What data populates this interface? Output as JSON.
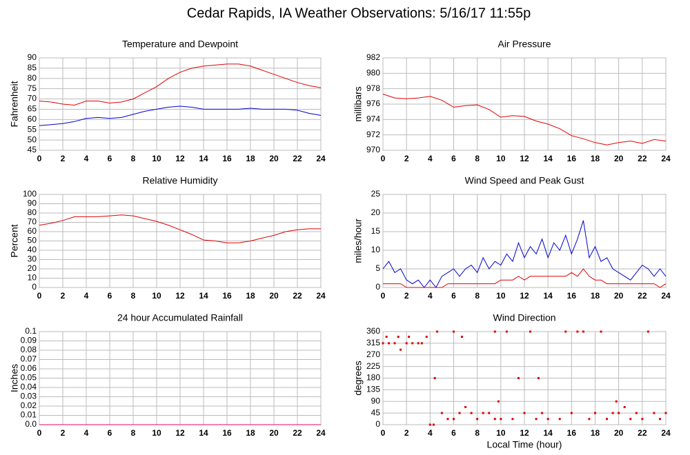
{
  "title": "Cedar Rapids, IA Weather Observations: 5/16/17 11:55p",
  "chart_data": [
    {
      "type": "line",
      "title": "Temperature and Dewpoint",
      "ylabel": "Fahrenheit",
      "xlim": [
        0,
        24
      ],
      "xticks": [
        0,
        2,
        4,
        6,
        8,
        10,
        12,
        14,
        16,
        18,
        20,
        22,
        24
      ],
      "ylim": [
        45,
        90
      ],
      "yticks": [
        45,
        50,
        55,
        60,
        65,
        70,
        75,
        80,
        85,
        90
      ],
      "grid": true,
      "x": [
        0,
        1,
        2,
        3,
        4,
        5,
        6,
        7,
        8,
        9,
        10,
        11,
        12,
        13,
        14,
        15,
        16,
        17,
        18,
        19,
        20,
        21,
        22,
        23,
        24
      ],
      "series": [
        {
          "color": "#e00000",
          "values": [
            69,
            68.5,
            67.5,
            67,
            69,
            69,
            68,
            68.5,
            70,
            73,
            76,
            80,
            83,
            85,
            86,
            86.5,
            87,
            87,
            86,
            84,
            82,
            80,
            78,
            76.5,
            75.5
          ]
        },
        {
          "color": "#0000d0",
          "values": [
            57,
            57.5,
            58,
            59,
            60.5,
            61,
            60.5,
            61,
            62.5,
            64,
            65,
            66,
            66.5,
            66,
            65,
            65,
            65,
            65,
            65.5,
            65,
            65,
            65,
            64.5,
            63,
            62
          ]
        }
      ]
    },
    {
      "type": "line",
      "title": "Air Pressure",
      "ylabel": "millibars",
      "xlim": [
        0,
        24
      ],
      "xticks": [
        0,
        2,
        4,
        6,
        8,
        10,
        12,
        14,
        16,
        18,
        20,
        22,
        24
      ],
      "ylim": [
        970,
        982
      ],
      "yticks": [
        970,
        972,
        974,
        976,
        978,
        980,
        982
      ],
      "grid": true,
      "x": [
        0,
        1,
        2,
        3,
        4,
        5,
        6,
        7,
        8,
        9,
        10,
        11,
        12,
        13,
        14,
        15,
        16,
        17,
        18,
        19,
        20,
        21,
        22,
        23,
        24
      ],
      "series": [
        {
          "color": "#e00000",
          "values": [
            977.3,
            976.8,
            976.7,
            976.8,
            977,
            976.5,
            975.6,
            975.8,
            975.9,
            975.3,
            974.3,
            974.5,
            974.4,
            973.8,
            973.4,
            972.8,
            971.9,
            971.5,
            971,
            970.7,
            971,
            971.2,
            970.9,
            971.4,
            971.2
          ]
        }
      ]
    },
    {
      "type": "line",
      "title": "Relative Humidity",
      "ylabel": "Percent",
      "xlim": [
        0,
        24
      ],
      "xticks": [
        0,
        2,
        4,
        6,
        8,
        10,
        12,
        14,
        16,
        18,
        20,
        22,
        24
      ],
      "ylim": [
        0,
        100
      ],
      "yticks": [
        0,
        10,
        20,
        30,
        40,
        50,
        60,
        70,
        80,
        90,
        100
      ],
      "grid": true,
      "x": [
        0,
        1,
        2,
        3,
        4,
        5,
        6,
        7,
        8,
        9,
        10,
        11,
        12,
        13,
        14,
        15,
        16,
        17,
        18,
        19,
        20,
        21,
        22,
        23,
        24
      ],
      "series": [
        {
          "color": "#e00000",
          "values": [
            67,
            69,
            72,
            76,
            76,
            76,
            77,
            78,
            77,
            74,
            71,
            67,
            62,
            57,
            51,
            50,
            48,
            48,
            50,
            53,
            56,
            60,
            62,
            63,
            63
          ]
        }
      ]
    },
    {
      "type": "line",
      "title": "Wind Speed and Peak Gust",
      "ylabel": "miles/hour",
      "xlim": [
        0,
        24
      ],
      "xticks": [
        0,
        2,
        4,
        6,
        8,
        10,
        12,
        14,
        16,
        18,
        20,
        22,
        24
      ],
      "ylim": [
        0,
        25
      ],
      "yticks": [
        0,
        5,
        10,
        15,
        20,
        25
      ],
      "grid": true,
      "x": [
        0,
        0.5,
        1,
        1.5,
        2,
        2.5,
        3,
        3.5,
        4,
        4.5,
        5,
        5.5,
        6,
        6.5,
        7,
        7.5,
        8,
        8.5,
        9,
        9.5,
        10,
        10.5,
        11,
        11.5,
        12,
        12.5,
        13,
        13.5,
        14,
        14.5,
        15,
        15.5,
        16,
        16.5,
        17,
        17.5,
        18,
        18.5,
        19,
        19.5,
        20,
        20.5,
        21,
        21.5,
        22,
        22.5,
        23,
        23.5,
        24
      ],
      "series": [
        {
          "color": "#0000d0",
          "values": [
            5,
            7,
            4,
            5,
            2,
            1,
            2,
            0,
            2,
            0,
            3,
            4,
            5,
            3,
            5,
            6,
            4,
            8,
            5,
            7,
            6,
            9,
            7,
            12,
            8,
            11,
            9,
            13,
            8,
            12,
            10,
            14,
            9,
            13,
            18,
            8,
            11,
            7,
            8,
            5,
            4,
            3,
            2,
            4,
            6,
            5,
            3,
            5,
            3
          ]
        },
        {
          "color": "#e00000",
          "values": [
            1,
            1,
            1,
            1,
            0,
            0,
            0,
            0,
            0,
            0,
            0,
            1,
            1,
            1,
            1,
            1,
            1,
            1,
            1,
            1,
            2,
            2,
            2,
            3,
            2,
            3,
            3,
            3,
            3,
            3,
            3,
            3,
            4,
            3,
            5,
            3,
            2,
            2,
            1,
            1,
            1,
            1,
            1,
            1,
            1,
            1,
            1,
            0,
            1
          ]
        }
      ]
    },
    {
      "type": "line",
      "title": "24 hour Accumulated Rainfall",
      "ylabel": "Inches",
      "xlim": [
        0,
        24
      ],
      "xticks": [
        0,
        2,
        4,
        6,
        8,
        10,
        12,
        14,
        16,
        18,
        20,
        22,
        24
      ],
      "ylim": [
        0,
        0.1
      ],
      "yticks": [
        {
          "value": 0,
          "label": "0.0"
        },
        0.01,
        0.02,
        0.03,
        0.04,
        0.05,
        0.06,
        0.07,
        0.08,
        0.09,
        0.1
      ],
      "grid": true,
      "x": [
        0,
        24
      ],
      "series": [
        {
          "color": "#e00060",
          "values": [
            0,
            0
          ]
        }
      ]
    },
    {
      "type": "scatter",
      "title": "Wind Direction",
      "ylabel": "degrees",
      "xlabel": "Local Time (hour)",
      "xlim": [
        0,
        24
      ],
      "xticks": [
        0,
        2,
        4,
        6,
        8,
        10,
        12,
        14,
        16,
        18,
        20,
        22,
        24
      ],
      "ylim": [
        0,
        360
      ],
      "yticks": [
        0,
        45,
        90,
        135,
        180,
        225,
        270,
        315,
        360
      ],
      "grid": true,
      "color": "#e00000",
      "x": [
        0,
        0.3,
        0.5,
        1,
        1.3,
        1.5,
        2,
        2.2,
        2.5,
        3,
        3.3,
        3.7,
        4,
        4.3,
        4.4,
        4.6,
        5,
        5.5,
        6,
        6,
        6.5,
        6.7,
        7,
        7.5,
        8,
        8.5,
        9,
        9.5,
        9.5,
        9.8,
        10,
        10.5,
        11,
        11.5,
        12,
        12.5,
        13,
        13.2,
        13.5,
        14,
        15,
        15.5,
        16,
        16.5,
        17,
        17.5,
        18,
        18.5,
        19,
        19.5,
        19.8,
        20,
        20.5,
        21,
        21.5,
        22,
        22.5,
        23,
        23.5,
        24
      ],
      "values": [
        315,
        340,
        315,
        315,
        340,
        290,
        315,
        340,
        315,
        315,
        315,
        340,
        0,
        0,
        180,
        360,
        45,
        22,
        22,
        360,
        45,
        340,
        68,
        45,
        22,
        45,
        45,
        360,
        22,
        90,
        22,
        360,
        22,
        180,
        45,
        360,
        22,
        180,
        45,
        22,
        22,
        360,
        45,
        360,
        360,
        22,
        45,
        360,
        22,
        45,
        90,
        45,
        68,
        22,
        45,
        22,
        360,
        45,
        22,
        45
      ]
    }
  ]
}
